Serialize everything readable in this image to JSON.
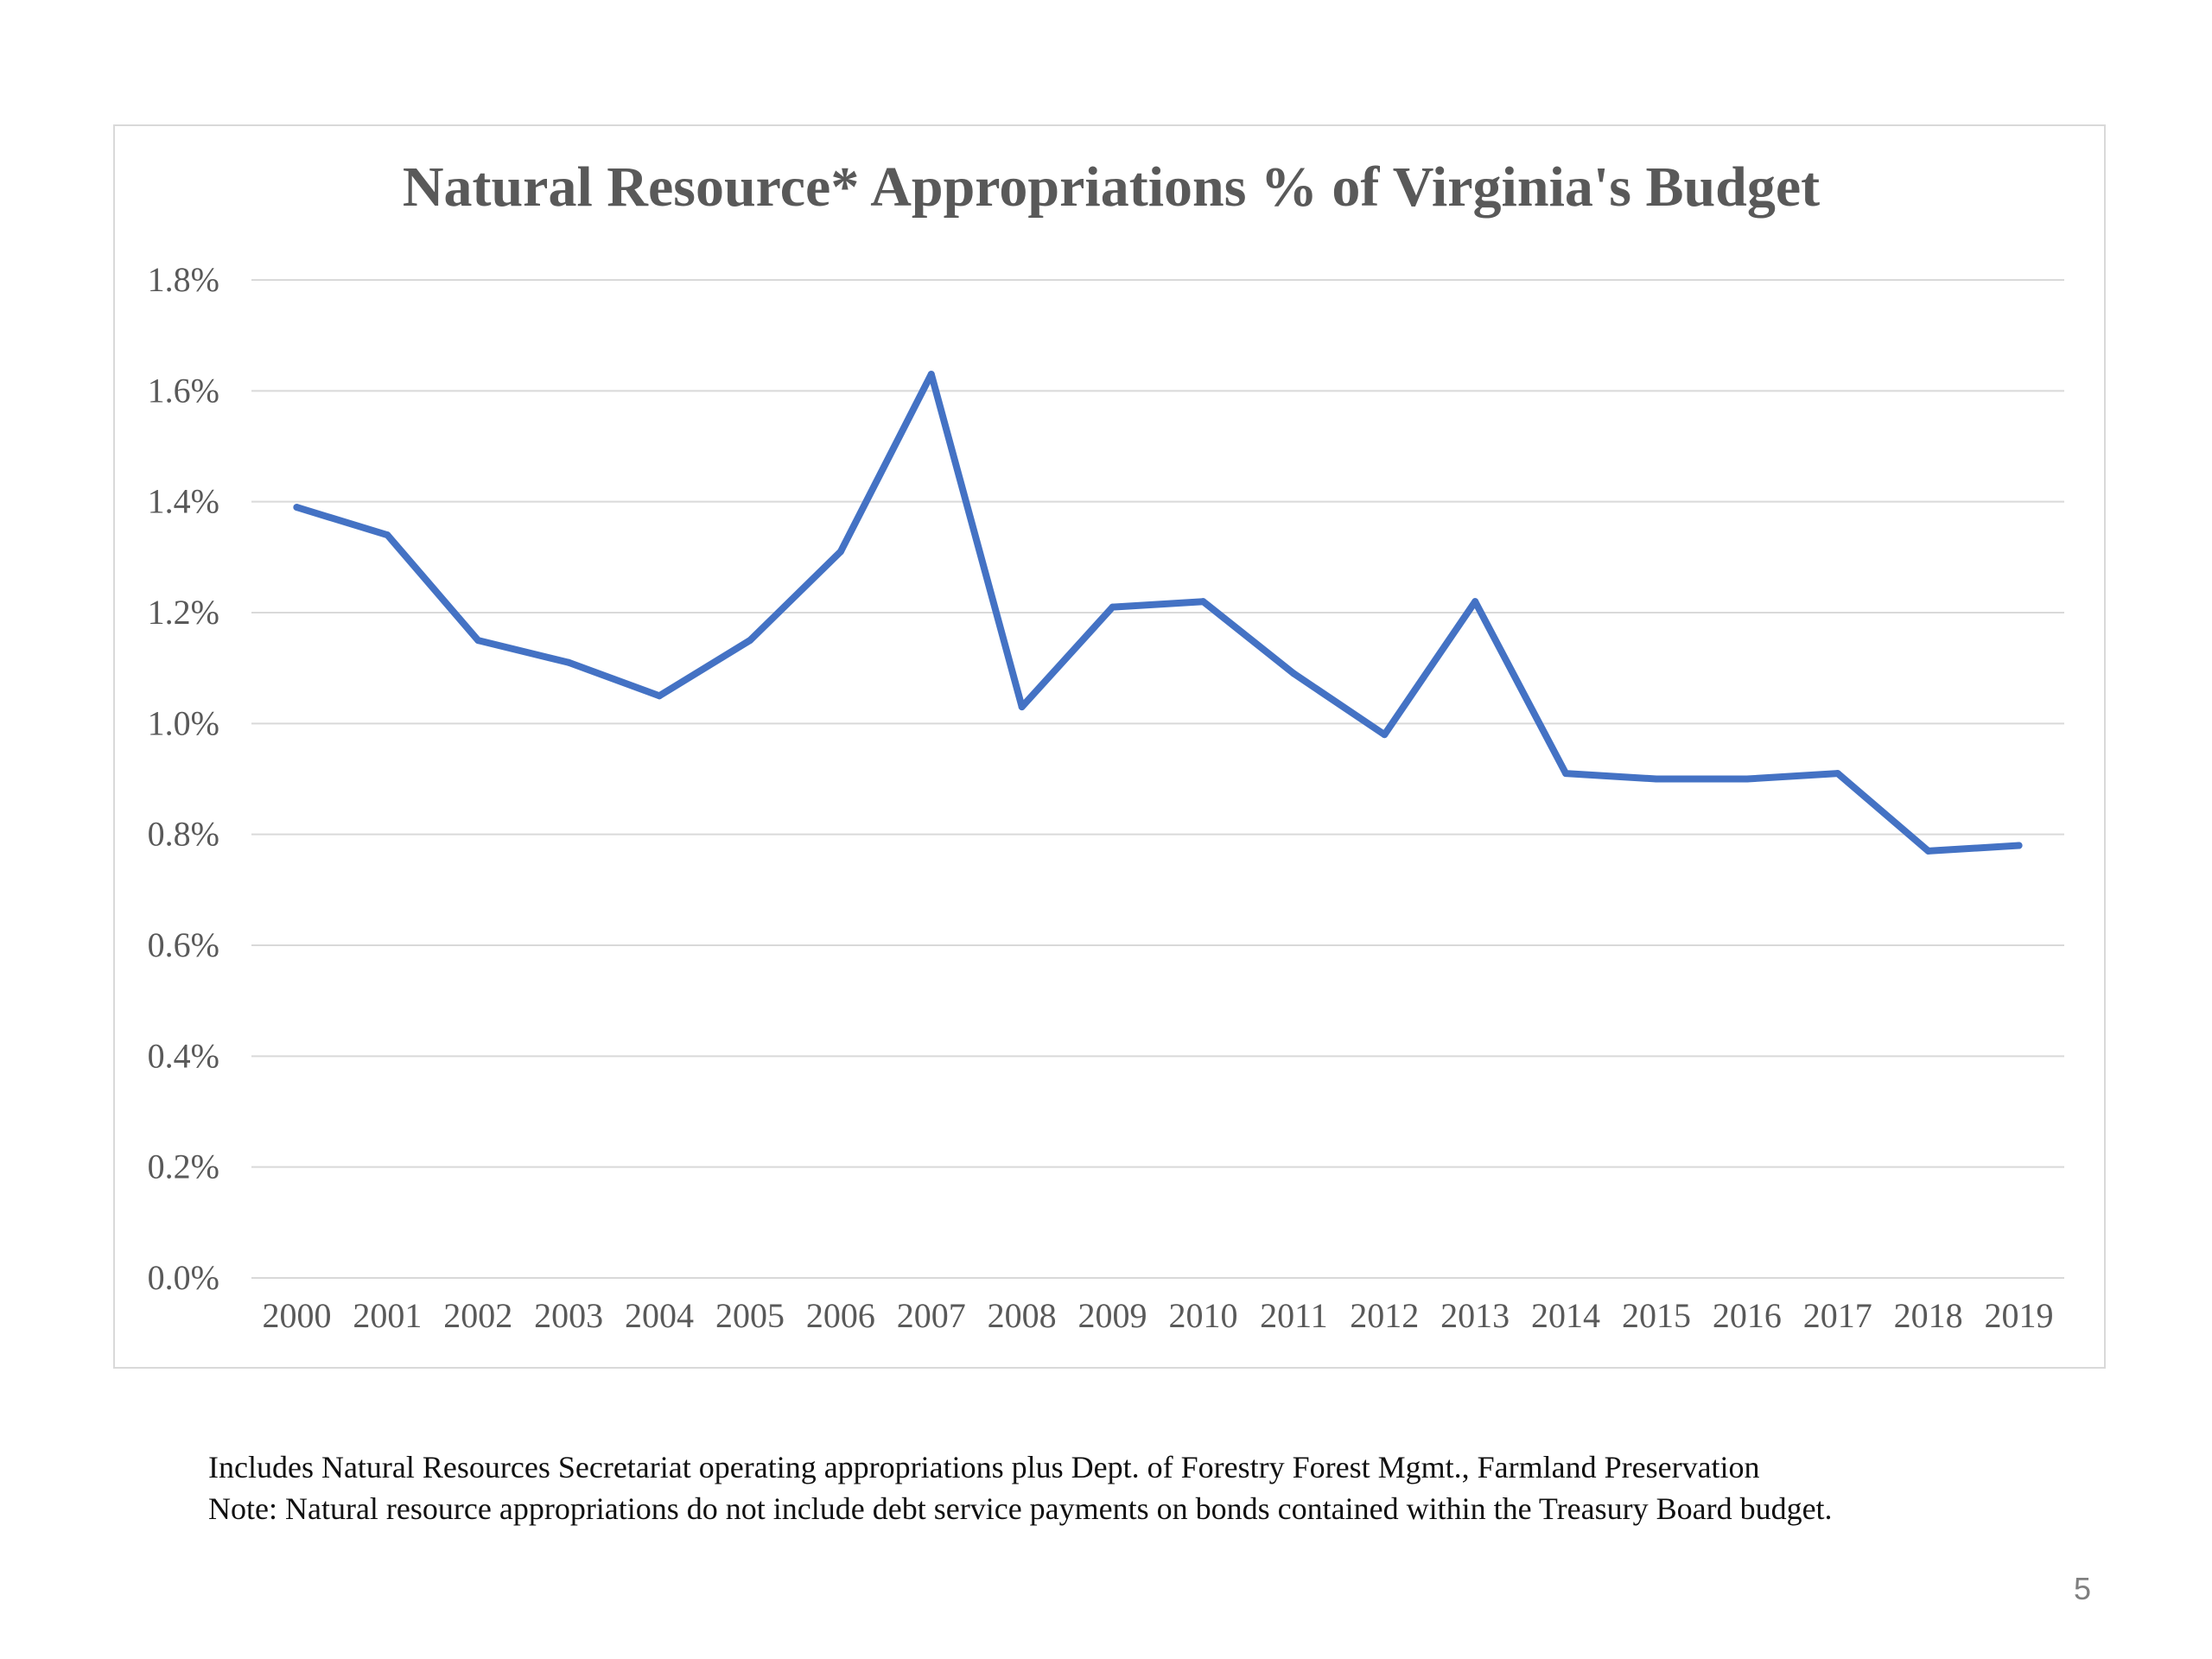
{
  "chart_data": {
    "type": "line",
    "title": "Natural Resource* Appropriations % of Virginia's Budget",
    "xlabel": "",
    "ylabel": "",
    "categories": [
      "2000",
      "2001",
      "2002",
      "2003",
      "2004",
      "2005",
      "2006",
      "2007",
      "2008",
      "2009",
      "2010",
      "2011",
      "2012",
      "2013",
      "2014",
      "2015",
      "2016",
      "2017",
      "2018",
      "2019"
    ],
    "series": [
      {
        "values": [
          1.39,
          1.34,
          1.15,
          1.11,
          1.05,
          1.15,
          1.31,
          1.63,
          1.03,
          1.21,
          1.22,
          1.09,
          0.98,
          1.22,
          0.91,
          0.9,
          0.9,
          0.91,
          0.77,
          0.78
        ],
        "color": "#4472c4"
      }
    ],
    "ylim": [
      0,
      1.8
    ],
    "yticks": [
      "0.0%",
      "0.2%",
      "0.4%",
      "0.6%",
      "0.8%",
      "1.0%",
      "1.2%",
      "1.4%",
      "1.6%",
      "1.8%"
    ],
    "grid": true,
    "legend": "none"
  },
  "notes": {
    "line1": "Includes Natural Resources Secretariat operating appropriations plus Dept. of Forestry Forest Mgmt., Farmland Preservation",
    "line2": "Note: Natural resource appropriations do not include debt service payments on bonds contained within the Treasury Board budget."
  },
  "page_number": "5",
  "colors": {
    "line": "#4472c4",
    "grid": "#d9d9d9",
    "text": "#595959",
    "border": "#d9d9d9"
  }
}
